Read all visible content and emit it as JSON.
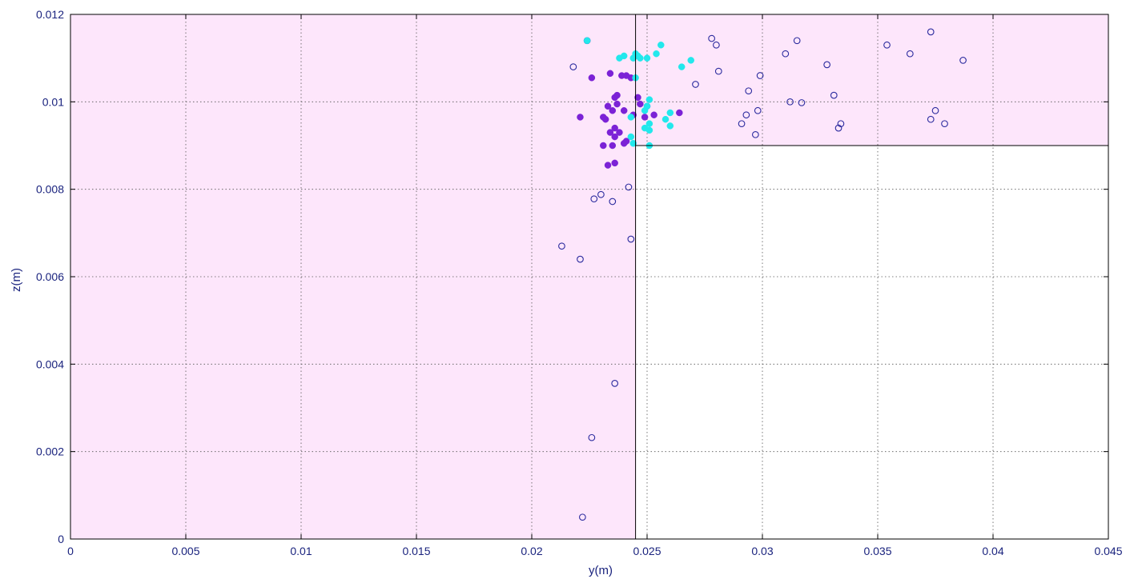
{
  "chart_data": {
    "type": "scatter",
    "title": "",
    "xlabel": "y(m)",
    "ylabel": "z(m)",
    "xlim": [
      0,
      0.045
    ],
    "ylim": [
      0,
      0.012
    ],
    "xticks": [
      0,
      0.005,
      0.01,
      0.015,
      0.02,
      0.025,
      0.03,
      0.035,
      0.04,
      0.045
    ],
    "xtick_labels": [
      "0",
      "0.005",
      "0.01",
      "0.015",
      "0.02",
      "0.025",
      "0.03",
      "0.035",
      "0.04",
      "0.045"
    ],
    "yticks": [
      0,
      0.002,
      0.004,
      0.006,
      0.008,
      0.01,
      0.012
    ],
    "ytick_labels": [
      "0",
      "0.002",
      "0.004",
      "0.006",
      "0.008",
      "0.01",
      "0.012"
    ],
    "grid": true,
    "colors": {
      "region_fill": "#fde6fb",
      "axis_text": "#1a237e",
      "open_marker": "#2a2a9e",
      "purple_marker": "#7b22d6",
      "cyan_marker": "#22e8ec"
    },
    "regions": [
      {
        "x": [
          0,
          0.0245
        ],
        "y": [
          0,
          0.012
        ]
      },
      {
        "x": [
          0.0245,
          0.045
        ],
        "y": [
          0.009,
          0.012
        ]
      }
    ],
    "series": [
      {
        "marker": "open",
        "points": [
          [
            0.0224,
            0.0114
          ],
          [
            0.0218,
            0.0108
          ],
          [
            0.0278,
            0.01145
          ],
          [
            0.028,
            0.0113
          ],
          [
            0.0281,
            0.0107
          ],
          [
            0.0271,
            0.0104
          ],
          [
            0.0294,
            0.01025
          ],
          [
            0.0299,
            0.0106
          ],
          [
            0.031,
            0.0111
          ],
          [
            0.0315,
            0.0114
          ],
          [
            0.0328,
            0.01085
          ],
          [
            0.0331,
            0.01015
          ],
          [
            0.0312,
            0.01
          ],
          [
            0.0317,
            0.00998
          ],
          [
            0.0298,
            0.0098
          ],
          [
            0.0293,
            0.0097
          ],
          [
            0.0291,
            0.0095
          ],
          [
            0.0297,
            0.00925
          ],
          [
            0.0334,
            0.0095
          ],
          [
            0.0333,
            0.0094
          ],
          [
            0.0354,
            0.0113
          ],
          [
            0.0364,
            0.0111
          ],
          [
            0.0373,
            0.0116
          ],
          [
            0.0387,
            0.01095
          ],
          [
            0.0375,
            0.0098
          ],
          [
            0.0373,
            0.0096
          ],
          [
            0.0379,
            0.0095
          ],
          [
            0.0242,
            0.00805
          ],
          [
            0.0227,
            0.00778
          ],
          [
            0.023,
            0.00788
          ],
          [
            0.0235,
            0.00772
          ],
          [
            0.0243,
            0.00686
          ],
          [
            0.0213,
            0.0067
          ],
          [
            0.0221,
            0.0064
          ],
          [
            0.0236,
            0.00356
          ],
          [
            0.0226,
            0.00232
          ],
          [
            0.0222,
            0.0005
          ]
        ]
      },
      {
        "marker": "purple",
        "points": [
          [
            0.0226,
            0.01055
          ],
          [
            0.0234,
            0.01065
          ],
          [
            0.0239,
            0.0106
          ],
          [
            0.0241,
            0.0106
          ],
          [
            0.0243,
            0.01055
          ],
          [
            0.0236,
            0.0101
          ],
          [
            0.0237,
            0.01015
          ],
          [
            0.0246,
            0.0101
          ],
          [
            0.0237,
            0.00995
          ],
          [
            0.0247,
            0.00995
          ],
          [
            0.0233,
            0.0099
          ],
          [
            0.0235,
            0.0098
          ],
          [
            0.024,
            0.0098
          ],
          [
            0.025,
            0.0099
          ],
          [
            0.0221,
            0.00965
          ],
          [
            0.0231,
            0.00965
          ],
          [
            0.0232,
            0.0096
          ],
          [
            0.0244,
            0.0097
          ],
          [
            0.0249,
            0.00965
          ],
          [
            0.0253,
            0.0097
          ],
          [
            0.0264,
            0.00975
          ],
          [
            0.0236,
            0.0094
          ],
          [
            0.0238,
            0.0093
          ],
          [
            0.0234,
            0.0093
          ],
          [
            0.0236,
            0.0092
          ],
          [
            0.0241,
            0.0091
          ],
          [
            0.0231,
            0.009
          ],
          [
            0.0235,
            0.009
          ],
          [
            0.024,
            0.00905
          ],
          [
            0.0233,
            0.00855
          ],
          [
            0.0236,
            0.0086
          ]
        ]
      },
      {
        "marker": "cyan",
        "points": [
          [
            0.0224,
            0.0114
          ],
          [
            0.0238,
            0.011
          ],
          [
            0.024,
            0.01105
          ],
          [
            0.0244,
            0.011
          ],
          [
            0.0245,
            0.0111
          ],
          [
            0.0246,
            0.01105
          ],
          [
            0.0247,
            0.011
          ],
          [
            0.025,
            0.011
          ],
          [
            0.0254,
            0.0111
          ],
          [
            0.0256,
            0.0113
          ],
          [
            0.0265,
            0.0108
          ],
          [
            0.0269,
            0.01095
          ],
          [
            0.0245,
            0.01055
          ],
          [
            0.0251,
            0.01005
          ],
          [
            0.025,
            0.0099
          ],
          [
            0.0243,
            0.00965
          ],
          [
            0.0249,
            0.0098
          ],
          [
            0.026,
            0.00975
          ],
          [
            0.0258,
            0.0096
          ],
          [
            0.026,
            0.00945
          ],
          [
            0.0251,
            0.0095
          ],
          [
            0.0249,
            0.0094
          ],
          [
            0.0251,
            0.00935
          ],
          [
            0.0243,
            0.0092
          ],
          [
            0.0244,
            0.00905
          ],
          [
            0.0251,
            0.009
          ]
        ]
      }
    ]
  }
}
